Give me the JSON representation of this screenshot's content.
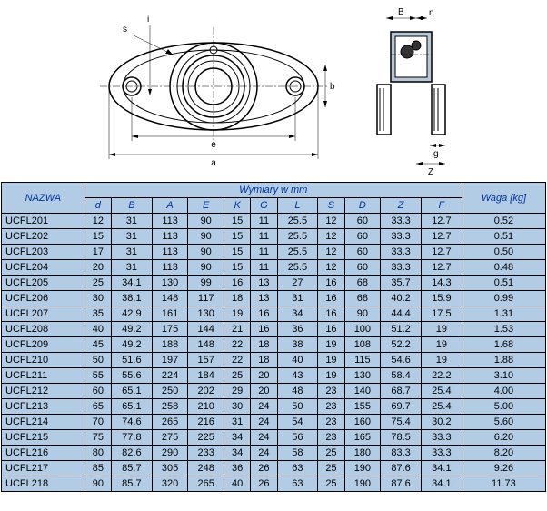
{
  "diagram": {
    "labels": {
      "s": "s",
      "i": "i",
      "e": "e",
      "a": "a",
      "b": "b",
      "B": "B",
      "n": "n",
      "g": "g",
      "Z": "Z"
    }
  },
  "table": {
    "header": {
      "name": "NAZWA",
      "dimensions": "Wymiary w mm",
      "weight": "Waga [kg]",
      "cols": [
        "d",
        "B",
        "A",
        "E",
        "K",
        "G",
        "L",
        "S",
        "D",
        "Z",
        "F"
      ]
    },
    "rows": [
      {
        "n": "UCFL201",
        "d": [
          12,
          31,
          113,
          90,
          15,
          11,
          25.5,
          12,
          60,
          33.3,
          12.7
        ],
        "w": 0.52
      },
      {
        "n": "UCFL202",
        "d": [
          15,
          31,
          113,
          90,
          15,
          11,
          25.5,
          12,
          60,
          33.3,
          12.7
        ],
        "w": 0.51
      },
      {
        "n": "UCFL203",
        "d": [
          17,
          31,
          113,
          90,
          15,
          11,
          25.5,
          12,
          60,
          33.3,
          12.7
        ],
        "w": 0.5
      },
      {
        "n": "UCFL204",
        "d": [
          20,
          31,
          113,
          90,
          15,
          11,
          25.5,
          12,
          60,
          33.3,
          12.7
        ],
        "w": 0.48
      },
      {
        "n": "UCFL205",
        "d": [
          25,
          34.1,
          130,
          99,
          16,
          13,
          27,
          16,
          68,
          35.7,
          14.3
        ],
        "w": 0.51
      },
      {
        "n": "UCFL206",
        "d": [
          30,
          38.1,
          148,
          117,
          18,
          13,
          31,
          16,
          68,
          40.2,
          15.9
        ],
        "w": 0.99
      },
      {
        "n": "UCFL207",
        "d": [
          35,
          42.9,
          161,
          130,
          19,
          16,
          34,
          16,
          90,
          44.4,
          17.5
        ],
        "w": 1.31
      },
      {
        "n": "UCFL208",
        "d": [
          40,
          49.2,
          175,
          144,
          21,
          16,
          36,
          16,
          100,
          51.2,
          19
        ],
        "w": 1.53
      },
      {
        "n": "UCFL209",
        "d": [
          45,
          49.2,
          188,
          148,
          22,
          18,
          38,
          19,
          108,
          52.2,
          19
        ],
        "w": 1.68
      },
      {
        "n": "UCFL210",
        "d": [
          50,
          51.6,
          197,
          157,
          22,
          18,
          40,
          19,
          115,
          54.6,
          19
        ],
        "w": 1.88
      },
      {
        "n": "UCFL211",
        "d": [
          55,
          55.6,
          224,
          184,
          25,
          20,
          43,
          19,
          130,
          58.4,
          22.2
        ],
        "w": 3.1
      },
      {
        "n": "UCFL212",
        "d": [
          60,
          65.1,
          250,
          202,
          29,
          20,
          48,
          23,
          140,
          68.7,
          25.4
        ],
        "w": 4.0
      },
      {
        "n": "UCFL213",
        "d": [
          65,
          65.1,
          258,
          210,
          30,
          24,
          50,
          23,
          155,
          69.7,
          25.4
        ],
        "w": 5.0
      },
      {
        "n": "UCFL214",
        "d": [
          70,
          74.6,
          265,
          216,
          31,
          24,
          54,
          23,
          160,
          75.4,
          30.2
        ],
        "w": 5.6
      },
      {
        "n": "UCFL215",
        "d": [
          75,
          77.8,
          275,
          225,
          34,
          24,
          56,
          23,
          165,
          78.5,
          33.3
        ],
        "w": 6.2
      },
      {
        "n": "UCFL216",
        "d": [
          80,
          82.6,
          290,
          233,
          34,
          24,
          58,
          25,
          180,
          83.3,
          33.3
        ],
        "w": 8.2
      },
      {
        "n": "UCFL217",
        "d": [
          85,
          85.7,
          305,
          248,
          36,
          26,
          63,
          25,
          190,
          87.6,
          34.1
        ],
        "w": 9.26
      },
      {
        "n": "UCFL218",
        "d": [
          90,
          85.7,
          320,
          265,
          40,
          26,
          63,
          25,
          190,
          87.6,
          34.1
        ],
        "w": 11.73
      }
    ]
  },
  "colors": {
    "header_bg": "#b3cce6",
    "header_text": "#003399",
    "border": "#000000"
  }
}
